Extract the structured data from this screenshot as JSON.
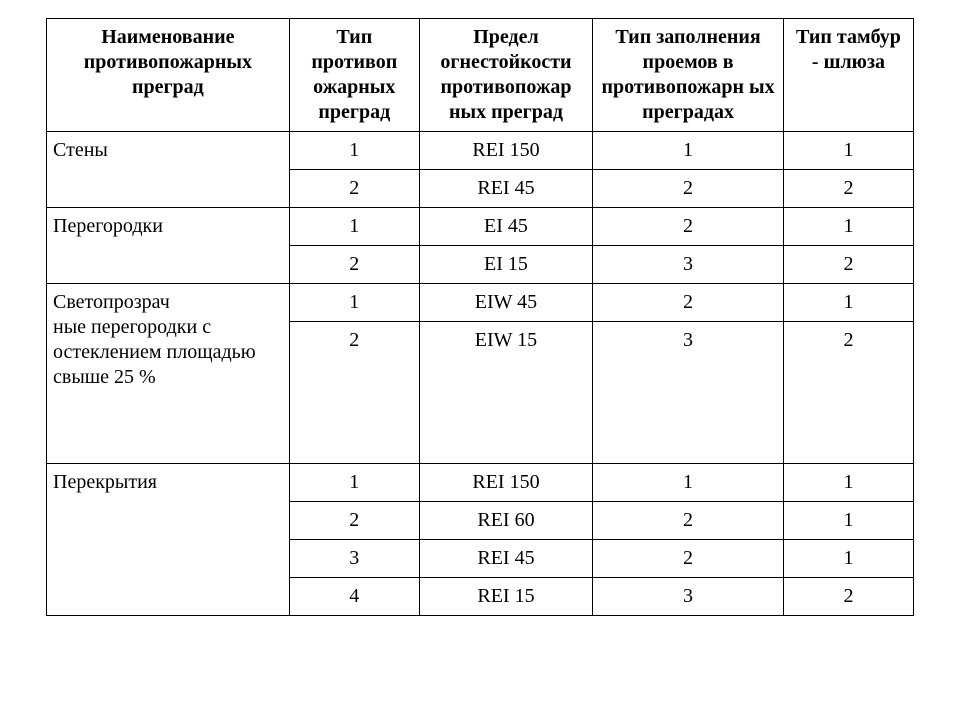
{
  "table": {
    "headers": [
      "Наименование противопожарных преград",
      "Тип противоп ожарных преград",
      "Предел огнестойкости противопожар ных преград",
      "Тип заполнения проемов в противопожарн ых преградах",
      "Тип тамбур - шлюза"
    ],
    "groups": [
      {
        "name": "Стены",
        "rows": [
          [
            "1",
            "REI 150",
            "1",
            "1"
          ],
          [
            "2",
            "REI 45",
            "2",
            "2"
          ]
        ]
      },
      {
        "name": "Перегородки",
        "rows": [
          [
            "1",
            "EI 45",
            "2",
            "1"
          ],
          [
            "2",
            "EI 15",
            "3",
            "2"
          ]
        ]
      },
      {
        "name": "Светопрозрач\nные  перегородки с остеклением  площадью свыше  25 %",
        "rows": [
          [
            "1",
            "EIW 45",
            "2",
            "1"
          ],
          [
            "2",
            "EIW 15",
            "3",
            "2"
          ]
        ],
        "tallSecond": true
      },
      {
        "name": "Перекрытия",
        "rows": [
          [
            "1",
            "REI 150",
            "1",
            "1"
          ],
          [
            "2",
            "REI 60",
            "2",
            "1"
          ],
          [
            "3",
            "REI 45",
            "2",
            "1"
          ],
          [
            "4",
            "REI 15",
            "3",
            "2"
          ]
        ]
      }
    ],
    "style": {
      "font_family": "Times New Roman",
      "font_size_pt": 15,
      "border_color": "#000000",
      "background_color": "#ffffff",
      "text_color": "#000000",
      "col_widths_pct": [
        28,
        15,
        20,
        22,
        15
      ]
    }
  }
}
